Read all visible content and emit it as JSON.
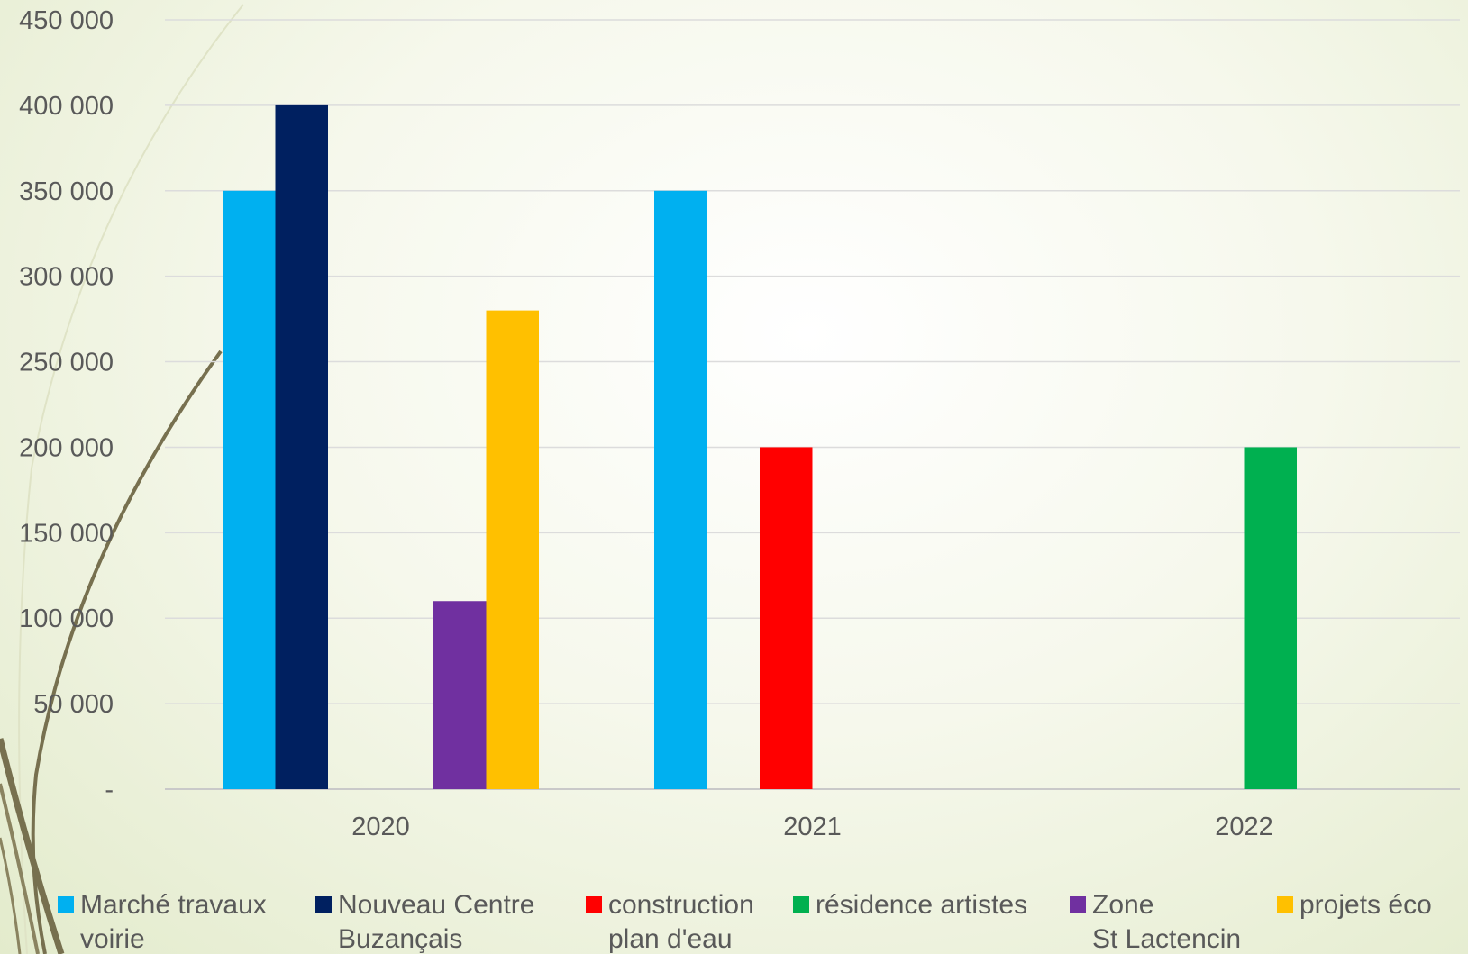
{
  "chart_data": {
    "type": "bar",
    "categories": [
      "2020",
      "2021",
      "2022"
    ],
    "yticks": [
      "-",
      "50 000",
      "100 000",
      "150 000",
      "200 000",
      "250 000",
      "300 000",
      "350 000",
      "400 000",
      "450 000"
    ],
    "ylim": [
      0,
      450000
    ],
    "grid": true,
    "legend_position": "bottom",
    "series": [
      {
        "name": "Marché travaux voirie",
        "legend_lines": [
          "Marché travaux",
          "voirie"
        ],
        "color": "#00B0F0",
        "values": [
          350000,
          350000,
          0
        ]
      },
      {
        "name": "Nouveau Centre Buzançais",
        "legend_lines": [
          "Nouveau Centre",
          "Buzançais"
        ],
        "color": "#002060",
        "values": [
          400000,
          0,
          0
        ]
      },
      {
        "name": "construction plan d'eau",
        "legend_lines": [
          "construction",
          "plan d'eau"
        ],
        "color": "#FF0000",
        "values": [
          0,
          200000,
          0
        ]
      },
      {
        "name": "résidence artistes",
        "legend_lines": [
          "résidence artistes"
        ],
        "color": "#00B050",
        "values": [
          0,
          0,
          200000
        ]
      },
      {
        "name": "Zone St Lactencin",
        "legend_lines": [
          "Zone",
          "St Lactencin"
        ],
        "color": "#7030A0",
        "values": [
          110000,
          0,
          0
        ]
      },
      {
        "name": "projets éco",
        "legend_lines": [
          "projets éco"
        ],
        "color": "#FFC000",
        "values": [
          280000,
          0,
          0
        ]
      }
    ]
  }
}
